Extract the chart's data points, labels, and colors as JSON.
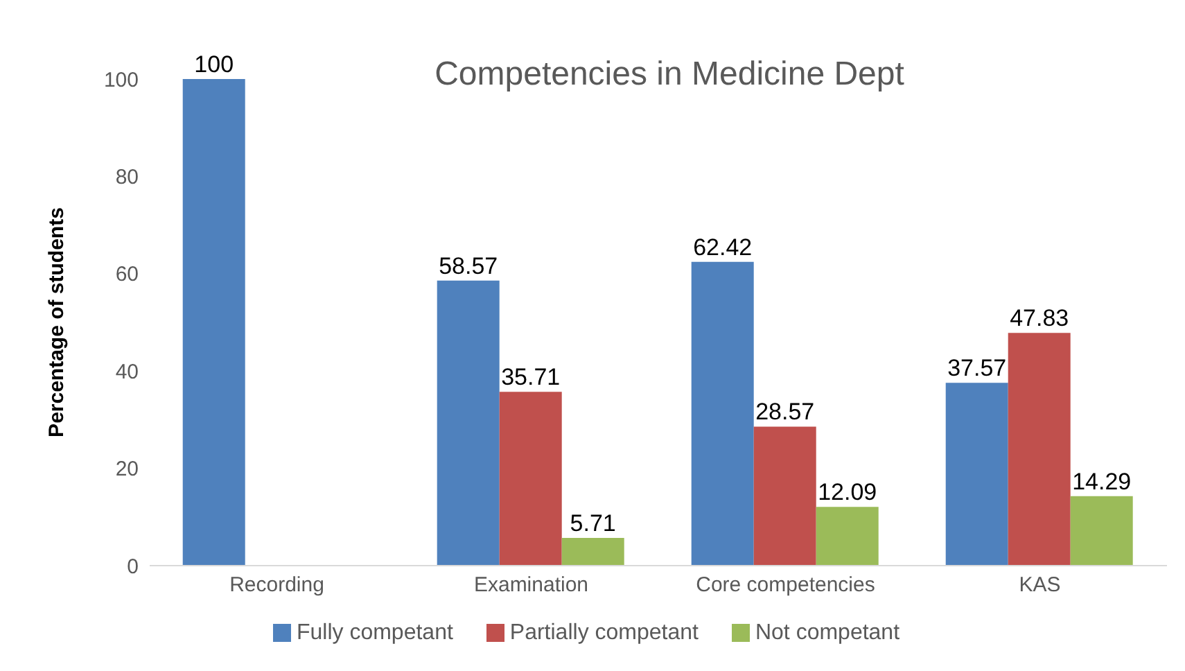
{
  "chart_data": {
    "type": "bar",
    "title": "Competencies in Medicine Dept",
    "ylabel": "Percentage of students",
    "categories": [
      "Recording",
      "Examination",
      "Core competencies",
      "KAS"
    ],
    "series": [
      {
        "name": "Fully competant",
        "color": "#4f81bd",
        "values": [
          100,
          58.57,
          62.42,
          37.57
        ]
      },
      {
        "name": "Partially competant",
        "color": "#c0504d",
        "values": [
          null,
          35.71,
          28.57,
          47.83
        ]
      },
      {
        "name": "Not competant",
        "color": "#9bbb59",
        "values": [
          null,
          5.71,
          12.09,
          14.29
        ]
      }
    ],
    "ylim": [
      0,
      100
    ],
    "yticks": [
      0,
      20,
      40,
      60,
      80,
      100
    ],
    "grid": false,
    "legend": "bottom",
    "data_labels": true
  }
}
